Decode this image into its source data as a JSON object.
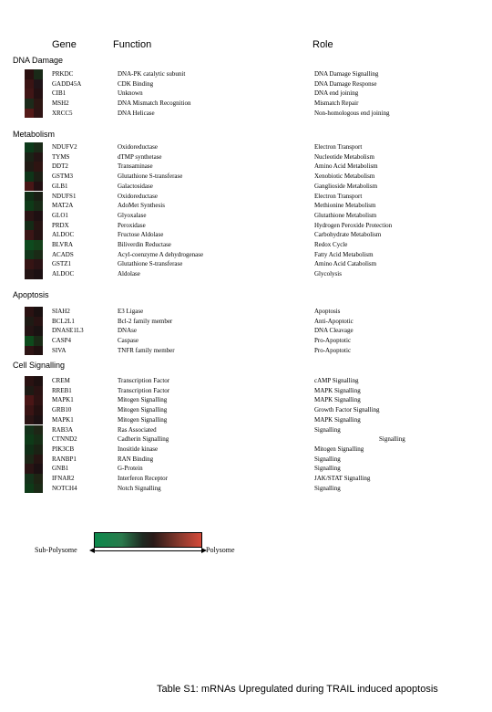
{
  "headers": {
    "gene": "Gene",
    "function": "Function",
    "role": "Role"
  },
  "sections": [
    {
      "title": "DNA Damage",
      "rows": [
        {
          "gene": "PRKDC",
          "function": "DNA-PK catalytic subunit",
          "role": "DNA Damage Signalling",
          "colors": [
            "#2a1010",
            "#1a2a18"
          ]
        },
        {
          "gene": "GADD45A",
          "function": "CDK Binding",
          "role": "DNA Damage Response",
          "colors": [
            "#3a1414",
            "#201418"
          ]
        },
        {
          "gene": "CIB1",
          "function": "Unknown",
          "role": "DNA end joining",
          "colors": [
            "#401616",
            "#241012"
          ]
        },
        {
          "gene": "MSH2",
          "function": "DNA Mismatch Recognition",
          "role": "Mismatch Repair",
          "colors": [
            "#1c2a1a",
            "#2c1612"
          ]
        },
        {
          "gene": "XRCC5",
          "function": "DNA Helicase",
          "role": "Non-homologous end joining",
          "colors": [
            "#541a18",
            "#2e1414"
          ]
        }
      ]
    },
    {
      "title": "Metabolism",
      "rows": [
        {
          "gene": "NDUFV2",
          "function": "Oxidoreductase",
          "role": "Electron Transport",
          "colors": [
            "#0c3a1a",
            "#1a2a18"
          ]
        },
        {
          "gene": "TYMS",
          "function": "dTMP synthetase",
          "role": "Nucleotide Metabolism",
          "colors": [
            "#1a2216",
            "#241414"
          ]
        },
        {
          "gene": "DDT2",
          "function": "Transaminase",
          "role": "Amino Acid Metabolism",
          "colors": [
            "#201a14",
            "#2e1412"
          ]
        },
        {
          "gene": "GSTM3",
          "function": "Glutathione S-transferase",
          "role": "Xenobiotic Metabolism",
          "colors": [
            "#0e3418",
            "#1c1e14"
          ]
        },
        {
          "gene": "GLB1",
          "function": "Galactosidase",
          "role": "Ganglioside Metabolism",
          "colors": [
            "#481616",
            "#221012"
          ]
        },
        {
          "gene": "NDUFS1",
          "function": "Oxidoreductase",
          "role": "Electron Transport",
          "colors": [
            "#102e16",
            "#1a1e14"
          ]
        },
        {
          "gene": "MAT2A",
          "function": "AdoMet Synthesis",
          "role": "Methionine Metabolism",
          "colors": [
            "#0e3a18",
            "#182a16"
          ]
        },
        {
          "gene": "GLO1",
          "function": "Glyoxalase",
          "role": "Glutathione Metabolism",
          "colors": [
            "#2a1414",
            "#1e1012"
          ]
        },
        {
          "gene": "PRDX",
          "function": "Peroxidase",
          "role": "Hydrogen Peroxide Protection",
          "colors": [
            "#142a16",
            "#261412"
          ]
        },
        {
          "gene": "ALDOC",
          "function": "Fructose Aldolase",
          "role": "Carbohydrate Metabolism",
          "colors": [
            "#3a1616",
            "#241212"
          ]
        },
        {
          "gene": "BLVRA",
          "function": "Biliverdin Reductase",
          "role": "Redox Cycle",
          "colors": [
            "#0e4a1e",
            "#14401a"
          ]
        },
        {
          "gene": "ACADS",
          "function": "Acyl-coenzyme A dehydrogenase",
          "role": "Fatty Acid Metabolism",
          "colors": [
            "#12361a",
            "#1a2a16"
          ]
        },
        {
          "gene": "GSTZ1",
          "function": "Glutathione S-transferase",
          "role": "Amino Acid Catabolism",
          "colors": [
            "#361414",
            "#2a1214"
          ]
        },
        {
          "gene": "ALDOC",
          "function": "Aldolase",
          "role": "Glycolysis",
          "colors": [
            "#241414",
            "#1c1012"
          ]
        }
      ]
    },
    {
      "title": "Apoptosis",
      "rows": [
        {
          "gene": "SIAH2",
          "function": "E3 Ligase",
          "role": "Apoptosis",
          "colors": [
            "#2a1212",
            "#1a1010"
          ]
        },
        {
          "gene": "BCL2L1",
          "function": "Bcl-2 family member",
          "role": "Anti-Apoptotic",
          "colors": [
            "#1e1a14",
            "#281212"
          ]
        },
        {
          "gene": "DNASE1L3",
          "function": "DNAse",
          "role": "DNA Cleavage",
          "colors": [
            "#241414",
            "#1a1212"
          ]
        },
        {
          "gene": "CASP4",
          "function": "Caspase",
          "role": "Pro-Apoptotic",
          "colors": [
            "#0e4a1c",
            "#1a2a16"
          ]
        },
        {
          "gene": "SIVA",
          "function": "TNFR family member",
          "role": "Pro-Apoptotic",
          "colors": [
            "#2e1414",
            "#201010"
          ]
        }
      ]
    },
    {
      "title": "Cell Signalling",
      "rows": [
        {
          "gene": "CREM",
          "function": "Transcription Factor",
          "role": "cAMP Signalling",
          "colors": [
            "#2a1212",
            "#1e1010"
          ]
        },
        {
          "gene": "RREB1",
          "function": "Transcription Factor",
          "role": "MAPK Signalling",
          "colors": [
            "#1e1a14",
            "#2a1212"
          ]
        },
        {
          "gene": "MAPK1",
          "function": "Mitogen Signalling",
          "role": "MAPK Signalling",
          "colors": [
            "#4a1616",
            "#2e1212"
          ]
        },
        {
          "gene": "GRB10",
          "function": "Mitogen Signalling",
          "role": "Growth Factor Signalling",
          "colors": [
            "#3a1414",
            "#241010"
          ]
        },
        {
          "gene": "MAPK1",
          "function": "Mitogen Signalling",
          "role": "MAPK Signalling",
          "colors": [
            "#2a1414",
            "#1c1012"
          ]
        },
        {
          "gene": "RAB3A",
          "function": "Ras Associated",
          "role": "Signalling",
          "colors": [
            "#14321a",
            "#1e2616"
          ]
        },
        {
          "gene": "CTNND2",
          "function": "Cadherin Signalling",
          "role": "Signalling",
          "role_indent": true,
          "colors": [
            "#0e3a18",
            "#162e16"
          ]
        },
        {
          "gene": "PIK3CB",
          "function": "Inositide kinase",
          "role": "Mitogen Signalling",
          "colors": [
            "#102e16",
            "#1a2214"
          ]
        },
        {
          "gene": "RANBP1",
          "function": "RAN Binding",
          "role": "Signalling",
          "colors": [
            "#1c2616",
            "#261412"
          ]
        },
        {
          "gene": "GNB1",
          "function": "G-Protein",
          "role": "Signalling",
          "colors": [
            "#2a1414",
            "#1c1012"
          ]
        },
        {
          "gene": "IFNAR2",
          "function": "Interferon Receptor",
          "role": "JAK/STAT Signalling",
          "colors": [
            "#14321a",
            "#1e2414"
          ]
        },
        {
          "gene": "NOTCH4",
          "function": "Notch Signalling",
          "role": "Signalling",
          "colors": [
            "#0e3a18",
            "#1a2a16"
          ]
        }
      ]
    }
  ],
  "legend": {
    "left_label": "Sub-Polysome",
    "right_label": "Polysome"
  },
  "caption": "Table S1: mRNAs Upregulated during TRAIL induced apoptosis"
}
